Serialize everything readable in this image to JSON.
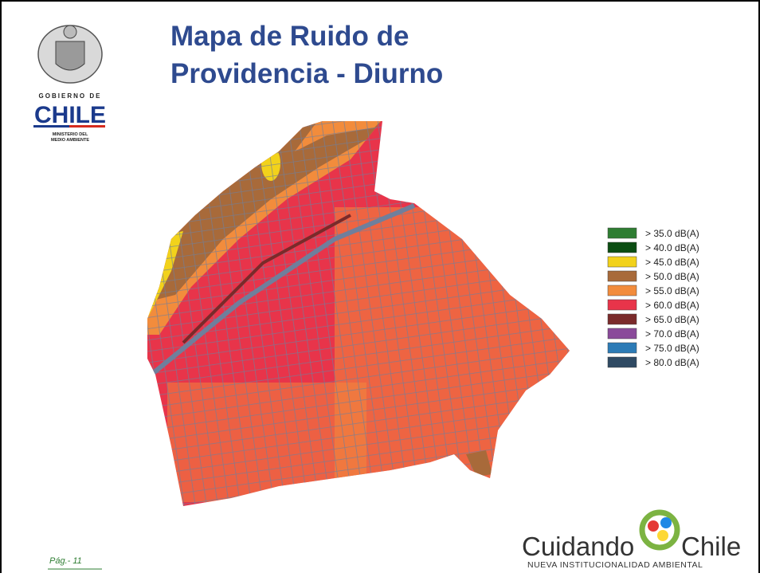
{
  "header": {
    "title_lines": [
      "Mapa de Ruido de",
      "Providencia - Diurno"
    ],
    "title_color": "#2e4a8f"
  },
  "logo_gobierno": {
    "line1": "GOBIERNO DE",
    "line2": "CHILE",
    "line3": "MINISTERIO DEL",
    "line4": "MEDIO AMBIENTE"
  },
  "legend": {
    "items": [
      {
        "label": "> 35.0 dB(A)",
        "color": "#2e7d32"
      },
      {
        "label": "> 40.0 dB(A)",
        "color": "#0b4d12"
      },
      {
        "label": "> 45.0 dB(A)",
        "color": "#f2d21b"
      },
      {
        "label": "> 50.0 dB(A)",
        "color": "#a86a3a"
      },
      {
        "label": "> 55.0 dB(A)",
        "color": "#f28c3c"
      },
      {
        "label": "> 60.0 dB(A)",
        "color": "#e8344a"
      },
      {
        "label": "> 65.0 dB(A)",
        "color": "#7a2a2a"
      },
      {
        "label": "> 70.0 dB(A)",
        "color": "#8a4a9a"
      },
      {
        "label": "> 75.0 dB(A)",
        "color": "#2c7bb6"
      },
      {
        "label": "> 80.0 dB(A)",
        "color": "#2f4a63"
      }
    ]
  },
  "logo_cuidando": {
    "word1": "Cuidando",
    "word2": "Chile",
    "tagline": "NUEVA INSTITUCIONALIDAD AMBIENTAL"
  },
  "footer": {
    "page": "Pág.- 11"
  }
}
